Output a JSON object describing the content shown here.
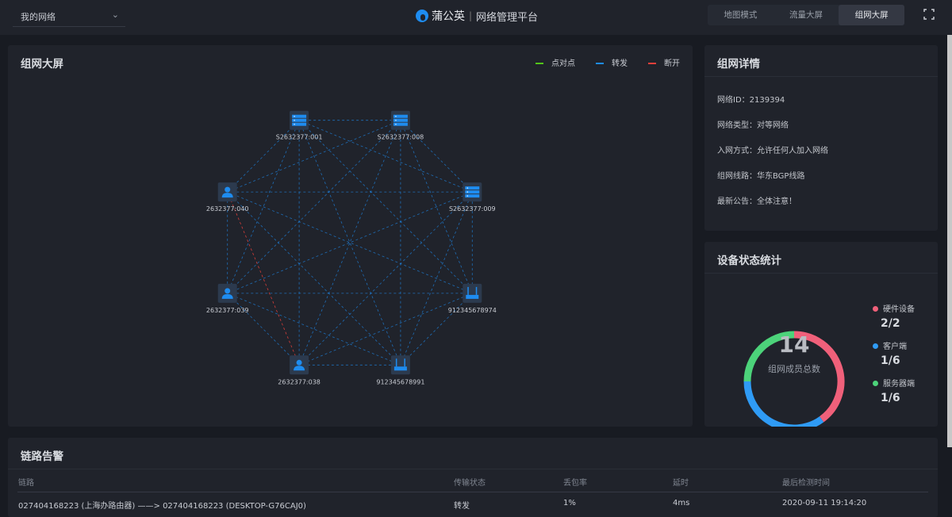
{
  "header": {
    "network_select": "我的网络",
    "brand": "蒲公英",
    "subtitle": "网络管理平台",
    "modes": [
      {
        "label": "地图模式",
        "active": false
      },
      {
        "label": "流量大屏",
        "active": false
      },
      {
        "label": "组网大屏",
        "active": true
      }
    ]
  },
  "topology": {
    "title": "组网大屏",
    "legend": [
      {
        "label": "点对点",
        "color": "#52c41a"
      },
      {
        "label": "转发",
        "color": "#1e8cf0"
      },
      {
        "label": "断开",
        "color": "#e8403a"
      }
    ],
    "nodes": [
      {
        "id": "S2632377:001",
        "type": "server"
      },
      {
        "id": "S2632377:008",
        "type": "server"
      },
      {
        "id": "S2632377:009",
        "type": "server"
      },
      {
        "id": "912345678974",
        "type": "router"
      },
      {
        "id": "912345678991",
        "type": "router"
      },
      {
        "id": "2632377:038",
        "type": "client"
      },
      {
        "id": "2632377:039",
        "type": "client"
      },
      {
        "id": "2632377:040",
        "type": "client"
      }
    ],
    "links": "all-pairs-forward",
    "broken_links": [
      [
        "2632377:040",
        "2632377:038"
      ]
    ]
  },
  "details": {
    "title": "组网详情",
    "rows": [
      "网络ID：2139394",
      "网络类型：对等网络",
      "入网方式：允许任何人加入网络",
      "组网线路：华东BGP线路",
      "最新公告：全体注意！"
    ]
  },
  "stats": {
    "title": "设备状态统计",
    "total": "14",
    "total_label": "组网成员总数",
    "items": [
      {
        "label": "硬件设备",
        "value": "2/2",
        "color": "#f0607a",
        "share": 0.4
      },
      {
        "label": "客户端",
        "value": "1/6",
        "color": "#2f9bf5",
        "share": 0.35
      },
      {
        "label": "服务器端",
        "value": "1/6",
        "color": "#4cd37a",
        "share": 0.25
      }
    ]
  },
  "alarm": {
    "title": "链路告警",
    "columns": [
      "链路",
      "传输状态",
      "丢包率",
      "延时",
      "最后检测时间"
    ],
    "rows": [
      [
        "027404168223 (上海办路由器) ——> 027404168223 (DESKTOP-G76CAJ0)",
        "转发",
        "1%",
        "4ms",
        "2020-09-11 19:14:20"
      ]
    ]
  }
}
